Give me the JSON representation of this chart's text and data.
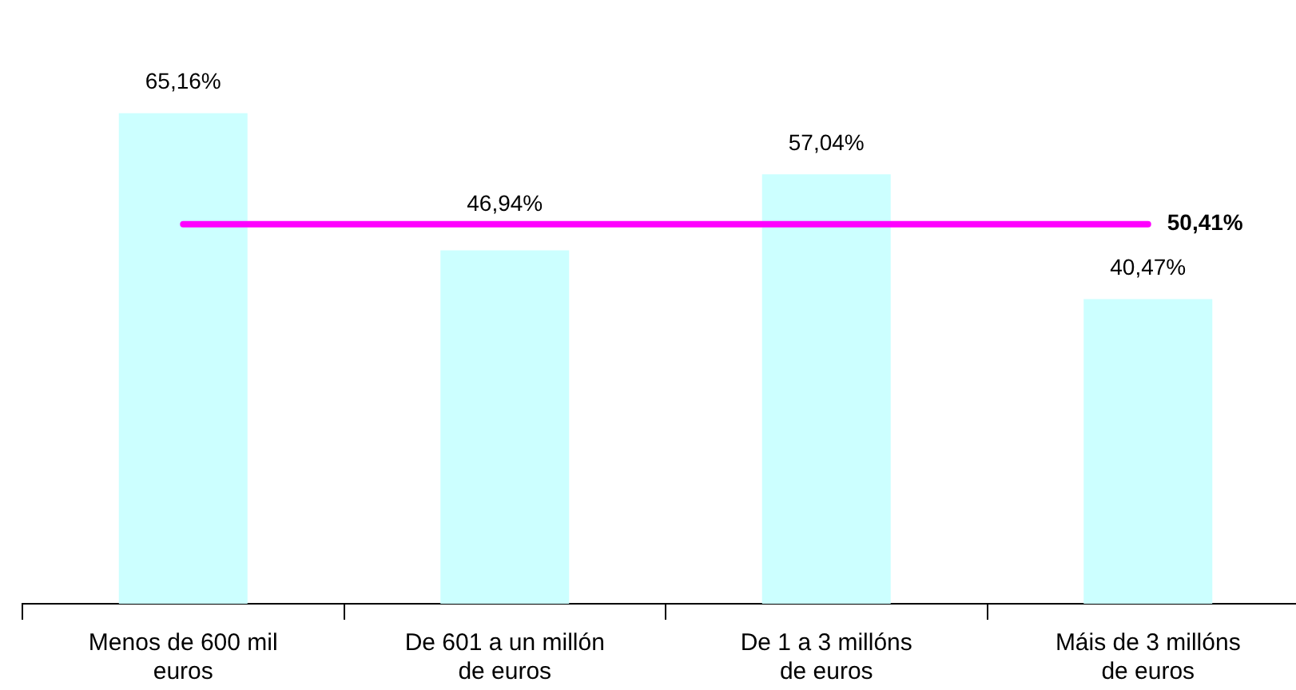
{
  "chart_data": {
    "type": "bar",
    "categories": [
      "Menos de 600 mil euros",
      "De 601 a un millón de euros",
      "De 1 a 3 millóns de euros",
      "Máis de 3 millóns de euros"
    ],
    "values": [
      65.16,
      46.94,
      57.04,
      40.47
    ],
    "color": "#ccffff",
    "value_labels": [
      "65,16%",
      "46,94%",
      "57,04%",
      "40,47%"
    ],
    "ref_lines": [
      {
        "axis": "y",
        "value": 50.41,
        "label": "50,41%",
        "color": "#ff00ff"
      }
    ],
    "grid": false,
    "legend": false,
    "tick_labels": "x"
  }
}
